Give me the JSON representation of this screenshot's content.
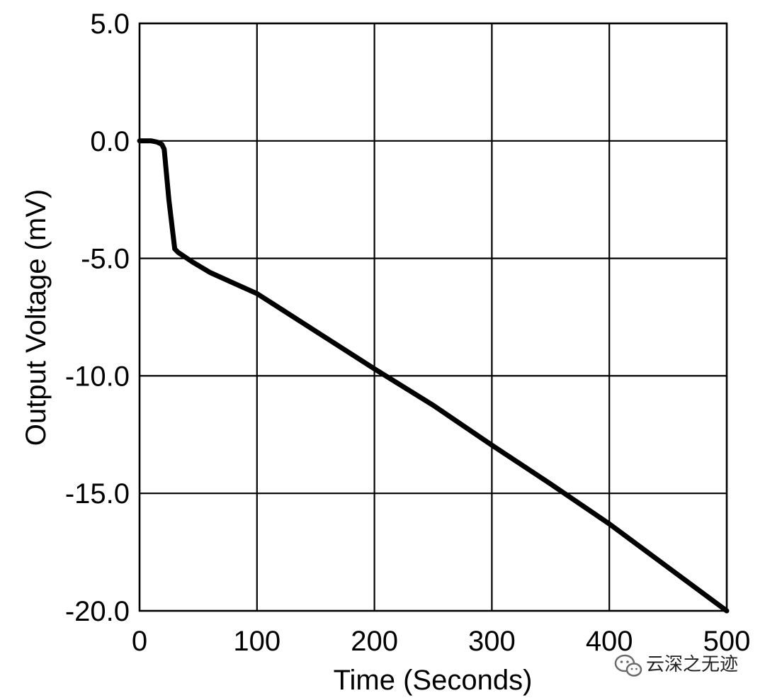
{
  "chart_data": {
    "type": "line",
    "title": "",
    "xlabel": "Time (Seconds)",
    "ylabel": "Output Voltage (mV)",
    "xlim": [
      0,
      500
    ],
    "ylim": [
      -20,
      5
    ],
    "x_ticks": [
      0,
      100,
      200,
      300,
      400,
      500
    ],
    "x_tick_labels": [
      "0",
      "100",
      "200",
      "300",
      "400",
      "500"
    ],
    "y_ticks": [
      5,
      0,
      -5,
      -10,
      -15,
      -20
    ],
    "y_tick_labels": [
      "5.0",
      "0.0",
      "-5.0",
      "-10.0",
      "-15.0",
      "-20.0"
    ],
    "grid": true,
    "series": [
      {
        "color": "#000000",
        "x": [
          0,
          10,
          15,
          19,
          21,
          25,
          30,
          33,
          45,
          60,
          80,
          100,
          150,
          200,
          250,
          300,
          350,
          400,
          450,
          500
        ],
        "y": [
          0.0,
          0.0,
          -0.05,
          -0.15,
          -0.35,
          -2.5,
          -4.6,
          -4.75,
          -5.15,
          -5.6,
          -6.05,
          -6.5,
          -8.1,
          -9.7,
          -11.25,
          -12.95,
          -14.6,
          -16.3,
          -18.15,
          -20.0
        ]
      }
    ]
  },
  "watermark": {
    "text": "云深之无迹",
    "icon": "wechat-icon"
  }
}
